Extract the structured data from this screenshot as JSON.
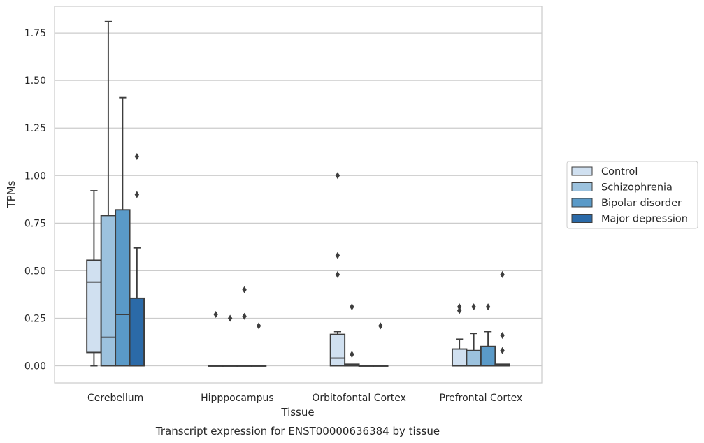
{
  "chart_data": {
    "type": "boxplot",
    "title": "Transcript expression for ENST00000636384 by tissue",
    "xlabel": "Tissue",
    "ylabel": "TPMs",
    "ylim": [
      -0.09,
      1.89
    ],
    "yticks": [
      0.0,
      0.25,
      0.5,
      0.75,
      1.0,
      1.25,
      1.5,
      1.75
    ],
    "ytick_labels": [
      "0.00",
      "0.25",
      "0.50",
      "0.75",
      "1.00",
      "1.25",
      "1.50",
      "1.75"
    ],
    "grid": "horizontal",
    "legend_position": "right",
    "categories": [
      "Cerebellum",
      "Hipppocampus",
      "Orbitofontal Cortex",
      "Prefrontal Cortex"
    ],
    "series": [
      {
        "name": "Control",
        "color": "#d0e0f0",
        "boxes": [
          {
            "whislo": 0.0,
            "q1": 0.07,
            "med": 0.44,
            "q3": 0.555,
            "whishi": 0.92,
            "fliers": []
          },
          {
            "whislo": 0.0,
            "q1": 0.0,
            "med": 0.0,
            "q3": 0.0,
            "whishi": 0.0,
            "fliers": [
              0.27
            ]
          },
          {
            "whislo": 0.0,
            "q1": 0.0,
            "med": 0.04,
            "q3": 0.165,
            "whishi": 0.18,
            "fliers": [
              0.48,
              0.58,
              1.0
            ]
          },
          {
            "whislo": 0.0,
            "q1": 0.0,
            "med": 0.0,
            "q3": 0.088,
            "whishi": 0.14,
            "fliers": [
              0.29,
              0.31
            ]
          }
        ]
      },
      {
        "name": "Schizophrenia",
        "color": "#9cc2de",
        "boxes": [
          {
            "whislo": 0.0,
            "q1": 0.0,
            "med": 0.15,
            "q3": 0.79,
            "whishi": 1.81,
            "fliers": []
          },
          {
            "whislo": 0.0,
            "q1": 0.0,
            "med": 0.0,
            "q3": 0.0,
            "whishi": 0.0,
            "fliers": [
              0.25
            ]
          },
          {
            "whislo": 0.0,
            "q1": 0.0,
            "med": 0.0,
            "q3": 0.008,
            "whishi": 0.008,
            "fliers": [
              0.06,
              0.31
            ]
          },
          {
            "whislo": 0.0,
            "q1": 0.0,
            "med": 0.0,
            "q3": 0.08,
            "whishi": 0.17,
            "fliers": [
              0.31
            ]
          }
        ]
      },
      {
        "name": "Bipolar disorder",
        "color": "#5a9ac8",
        "boxes": [
          {
            "whislo": 0.0,
            "q1": 0.0,
            "med": 0.27,
            "q3": 0.82,
            "whishi": 1.41,
            "fliers": []
          },
          {
            "whislo": 0.0,
            "q1": 0.0,
            "med": 0.0,
            "q3": 0.0,
            "whishi": 0.0,
            "fliers": [
              0.26,
              0.4
            ]
          },
          {
            "whislo": 0.0,
            "q1": 0.0,
            "med": 0.0,
            "q3": 0.0,
            "whishi": 0.0,
            "fliers": []
          },
          {
            "whislo": 0.0,
            "q1": 0.0,
            "med": 0.0,
            "q3": 0.102,
            "whishi": 0.18,
            "fliers": [
              0.31
            ]
          }
        ]
      },
      {
        "name": "Major depression",
        "color": "#2b6aa8",
        "boxes": [
          {
            "whislo": 0.0,
            "q1": 0.0,
            "med": 0.0,
            "q3": 0.355,
            "whishi": 0.62,
            "fliers": [
              0.9,
              1.1
            ]
          },
          {
            "whislo": 0.0,
            "q1": 0.0,
            "med": 0.0,
            "q3": 0.0,
            "whishi": 0.0,
            "fliers": [
              0.21
            ]
          },
          {
            "whislo": 0.0,
            "q1": 0.0,
            "med": 0.0,
            "q3": 0.0,
            "whishi": 0.0,
            "fliers": [
              0.21
            ]
          },
          {
            "whislo": 0.0,
            "q1": 0.0,
            "med": 0.0,
            "q3": 0.008,
            "whishi": 0.008,
            "fliers": [
              0.08,
              0.16,
              0.48
            ]
          }
        ]
      }
    ],
    "colors": {
      "grid": "#cccccc",
      "frame": "#cccccc",
      "edge": "#3d3d3d",
      "text": "#262626",
      "legend_border": "#cccccc"
    }
  }
}
